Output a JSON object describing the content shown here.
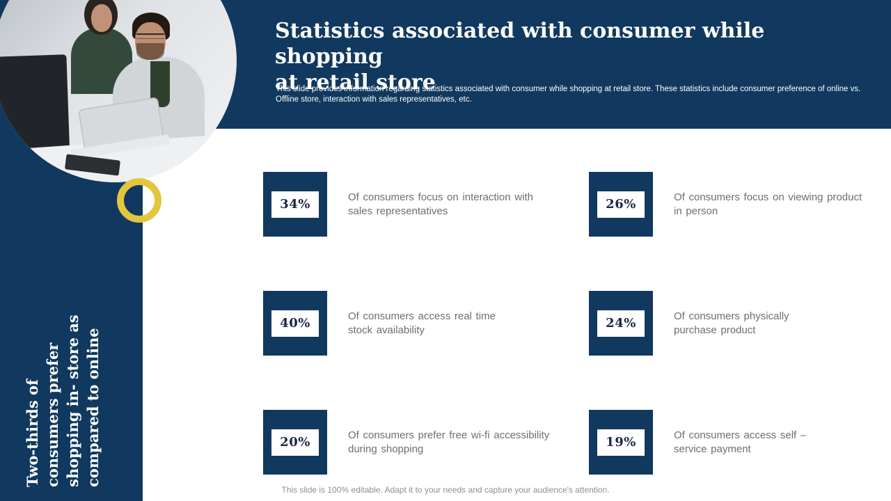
{
  "header": {
    "title_lines": [
      "Statistics associated with consumer while shopping",
      "at retail store"
    ],
    "subtitle": "This slide provides information regarding statistics associated with consumer while shopping at retail store. These statistics include consumer preference of online vs. Offline store, interaction with sales representatives, etc."
  },
  "sidebar": {
    "highlight": "Two-thirds",
    "rest": " of consumers prefer shopping in- store as compared to online"
  },
  "stats": [
    {
      "value": "34%",
      "lines": [
        "Of consumers focus on interaction with",
        "sales representatives"
      ]
    },
    {
      "value": "26%",
      "lines": [
        "Of consumers focus on viewing product",
        "in person"
      ]
    },
    {
      "value": "40%",
      "lines": [
        "Of consumers access real time",
        "stock availability"
      ]
    },
    {
      "value": "24%",
      "lines": [
        "Of consumers physically",
        "purchase product"
      ]
    },
    {
      "value": "20%",
      "lines": [
        "Of consumers prefer free wi-fi accessibility",
        "during shopping"
      ]
    },
    {
      "value": "19%",
      "lines": [
        "Of consumers access self –",
        "service payment"
      ]
    }
  ],
  "footer": "This slide is 100% editable. Adapt it to your needs and capture your audience's attention.",
  "colors": {
    "navy": "#11395F",
    "accent_yellow": "#E3C63D",
    "label_gray": "#6E6E6E",
    "value_navy": "#1A2744"
  }
}
